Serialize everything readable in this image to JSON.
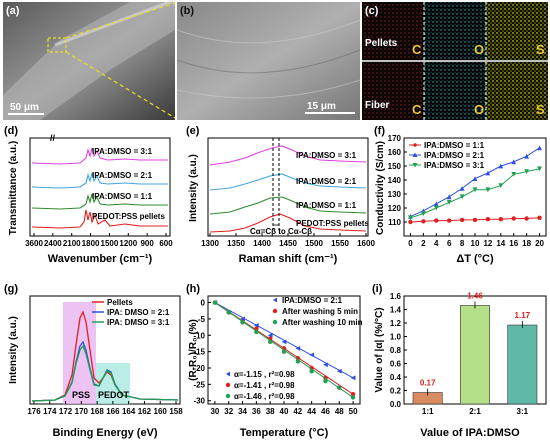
{
  "panels": {
    "a": {
      "label": "(a)",
      "scale": "50 μm"
    },
    "b": {
      "label": "(b)",
      "scale": "15 μm"
    },
    "c": {
      "label": "(c)",
      "row1": "Pellets",
      "row2": "Fiber",
      "elements": [
        "C",
        "O",
        "S"
      ]
    },
    "d": {
      "label": "(d)",
      "ylabel": "Transmittance (a.u.)",
      "xlabel": "Wavenumber (cm⁻¹)"
    },
    "e": {
      "label": "(e)",
      "ylabel": "Intensity (a.u.)",
      "xlabel": "Raman shift (cm⁻¹)",
      "annotation": "Cα=Cβ to Cα-Cβ"
    },
    "f": {
      "label": "(f)",
      "ylabel": "Conductivity (S/cm)",
      "xlabel": "ΔT (°C)"
    },
    "g": {
      "label": "(g)",
      "ylabel": "Intensity (a.u.)",
      "xlabel": "Binding Energy (eV)",
      "region1": "PSS",
      "region2": "PEDOT"
    },
    "h": {
      "label": "(h)",
      "ylabel": "(R-R₀)/R₀ (%)",
      "xlabel": "Temperature (°C)",
      "fits": [
        "α=-1.15 , r²=0.98",
        "α=-1.41 , r²=0.98",
        "α=-1.46 , r²=0.98"
      ]
    },
    "i": {
      "label": "(i)",
      "ylabel": "Value of |α| (%/°C)",
      "xlabel": "Value of IPA:DMSO"
    }
  },
  "colors": {
    "pink": "#e040e0",
    "lightblue": "#42a5e0",
    "green": "#2e8b2e",
    "red": "#e02020",
    "blue": "#3050e0",
    "darkgreen": "#20a050",
    "orange": "#d98c5f",
    "lightgreen": "#b5e08a",
    "teal": "#5fb8a8"
  },
  "chart_data": [
    {
      "panel": "d",
      "type": "line",
      "x_ticks": [
        "3600",
        "2400",
        "2100",
        "1800",
        "1500",
        "1200",
        "900",
        "600"
      ],
      "series": [
        {
          "name": "IPA:DMSO = 3:1",
          "color": "#e040e0"
        },
        {
          "name": "IPA:DMSO = 2:1",
          "color": "#42a5e0"
        },
        {
          "name": "IPA:DMSO = 1:1",
          "color": "#2e8b2e"
        },
        {
          "name": "PEDOT:PSS pellets",
          "color": "#e02020"
        }
      ]
    },
    {
      "panel": "e",
      "type": "line",
      "x_ticks": [
        "1300",
        "1350",
        "1400",
        "1450",
        "1500",
        "1550",
        "1600"
      ],
      "xlim": [
        1300,
        1600
      ],
      "series": [
        {
          "name": "IPA:DMSO = 3:1",
          "color": "#e040e0"
        },
        {
          "name": "IPA:DMSO = 2:1",
          "color": "#42a5e0"
        },
        {
          "name": "IPA:DMSO = 1:1",
          "color": "#2e8b2e"
        },
        {
          "name": "PEDOT:PSS pellets",
          "color": "#e02020"
        }
      ]
    },
    {
      "panel": "f",
      "type": "line",
      "x": [
        0,
        2,
        4,
        6,
        8,
        10,
        12,
        14,
        16,
        18,
        20
      ],
      "xlim": [
        -1,
        21
      ],
      "ylim": [
        100,
        170
      ],
      "x_ticks": [
        "0",
        "2",
        "4",
        "6",
        "8",
        "10",
        "12",
        "14",
        "16",
        "18",
        "20"
      ],
      "y_ticks": [
        "110",
        "120",
        "130",
        "140",
        "150",
        "160",
        "170"
      ],
      "series": [
        {
          "name": "IPA:DMSO = 1:1",
          "color": "#e02020",
          "marker": "circle",
          "values": [
            110,
            110.5,
            111,
            111,
            111.5,
            111.5,
            112,
            112,
            112.5,
            112.5,
            113
          ]
        },
        {
          "name": "IPA:DMSO = 2:1",
          "color": "#3050e0",
          "marker": "triangle-up",
          "values": [
            114,
            118,
            123,
            128,
            134,
            141,
            145,
            150,
            153,
            157,
            163
          ]
        },
        {
          "name": "IPA:DMSO = 3:1",
          "color": "#20a050",
          "marker": "triangle-down",
          "values": [
            113,
            116,
            120,
            124,
            128,
            133,
            133,
            136,
            144,
            146,
            148
          ]
        }
      ]
    },
    {
      "panel": "g",
      "type": "line",
      "x_ticks": [
        "176",
        "174",
        "172",
        "170",
        "168",
        "166",
        "164",
        "162",
        "160",
        "158"
      ],
      "xlim": [
        176,
        158
      ],
      "series": [
        {
          "name": "Pellets",
          "color": "#e02020"
        },
        {
          "name": "IPA: DMSO = 2:1",
          "color": "#3050e0"
        },
        {
          "name": "IPA: DMSO = 3:1",
          "color": "#20a050"
        }
      ]
    },
    {
      "panel": "h",
      "type": "scatter",
      "x": [
        30,
        32,
        34,
        36,
        38,
        40,
        42,
        44,
        46,
        48,
        50
      ],
      "xlim": [
        29,
        51
      ],
      "ylim": [
        -31,
        2
      ],
      "x_ticks": [
        "30",
        "32",
        "34",
        "36",
        "38",
        "40",
        "42",
        "44",
        "46",
        "48",
        "50"
      ],
      "y_ticks": [
        "0",
        "-5",
        "-10",
        "-15",
        "-20",
        "-25",
        "-30"
      ],
      "series": [
        {
          "name": "IPA:DMSO = 2:1",
          "color": "#3050e0",
          "marker": "triangle-left",
          "values": [
            0,
            -3,
            -5,
            -7,
            -10,
            -12,
            -14,
            -16,
            -19,
            -21,
            -23
          ]
        },
        {
          "name": "After washing 5 min",
          "color": "#e02020",
          "marker": "circle",
          "values": [
            0,
            -3,
            -6,
            -8,
            -11,
            -14,
            -17,
            -20,
            -23,
            -26,
            -28
          ]
        },
        {
          "name": "After washing 10 min",
          "color": "#20a050",
          "marker": "circle",
          "values": [
            0,
            -3,
            -6,
            -9,
            -12,
            -15,
            -18,
            -21,
            -24,
            -26,
            -29
          ]
        }
      ]
    },
    {
      "panel": "i",
      "type": "bar",
      "categories": [
        "1:1",
        "2:1",
        "3:1"
      ],
      "values": [
        0.17,
        1.46,
        1.17
      ],
      "value_labels": [
        "0.17",
        "1.46",
        "1.17"
      ],
      "ylim": [
        0.0,
        1.6
      ],
      "y_ticks": [
        "0.0",
        "0.2",
        "0.4",
        "0.6",
        "0.8",
        "1.0",
        "1.2",
        "1.4",
        "1.6"
      ]
    }
  ]
}
